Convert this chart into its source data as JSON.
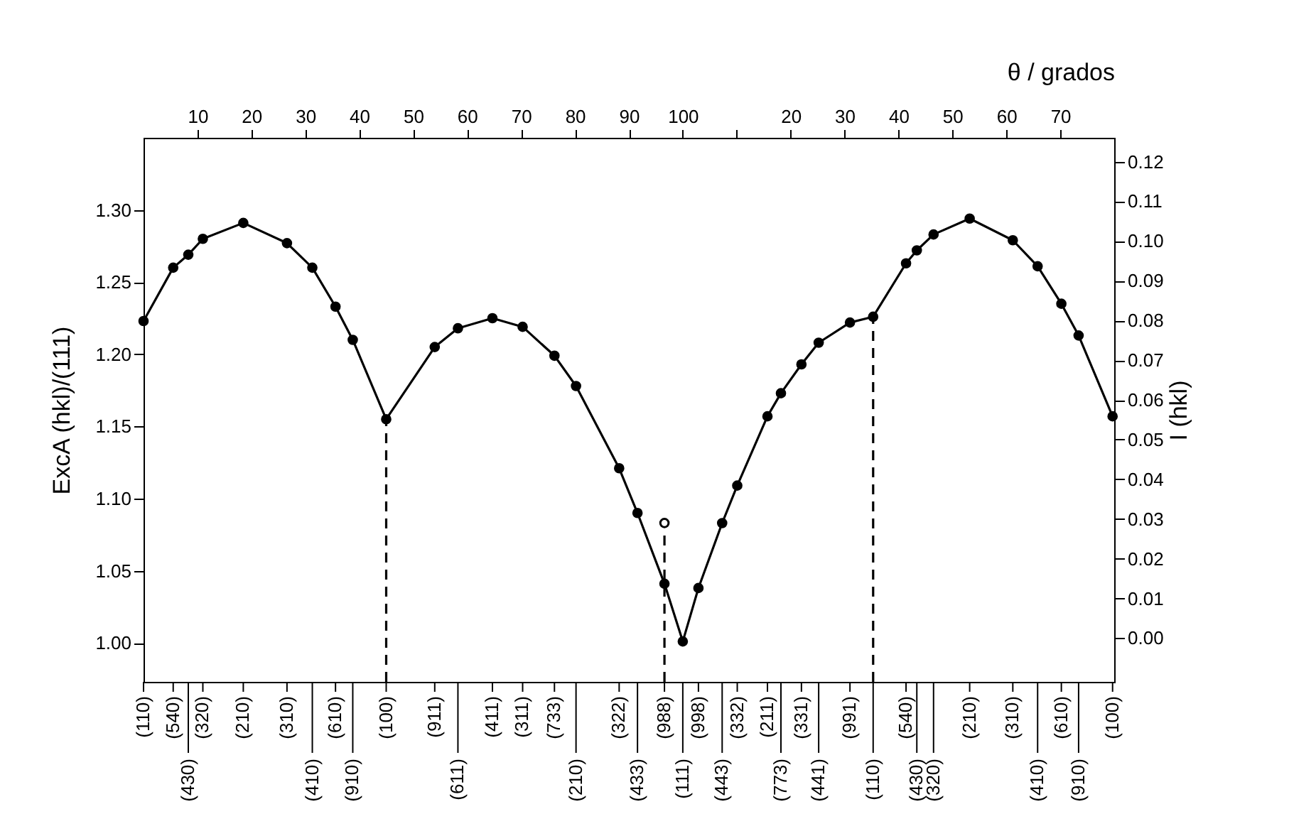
{
  "chart_data": {
    "type": "line",
    "xlabel": "θ / grados",
    "ylabel": "ExcA (hkl)/(111)",
    "y2label": "I (hkl)",
    "xlim": [
      0,
      180
    ],
    "x2lim": [
      -100,
      80
    ],
    "ylim": [
      0.973,
      1.35
    ],
    "y2lim": [
      -0.011,
      0.126
    ],
    "xticks": [
      10,
      20,
      30,
      40,
      50,
      60,
      70,
      80,
      90,
      100
    ],
    "x2ticks": [
      {
        "value": 10,
        "label": null
      },
      20,
      30,
      40,
      50,
      60,
      70
    ],
    "yticks": [
      {
        "value": 1,
        "label": "1.00"
      },
      {
        "value": 1.05,
        "label": "1.05"
      },
      {
        "value": 1.1,
        "label": "1.10"
      },
      {
        "value": 1.15,
        "label": "1.15"
      },
      {
        "value": 1.2,
        "label": "1.20"
      },
      {
        "value": 1.25,
        "label": "1.25"
      },
      {
        "value": 1.3,
        "label": "1.30"
      }
    ],
    "y2ticks": [
      {
        "value": 0,
        "label": "0.00"
      },
      0.01,
      0.02,
      0.03,
      0.04,
      0.05,
      0.06,
      0.07,
      0.08,
      0.09,
      {
        "value": 0.1,
        "label": "0.10"
      },
      0.11,
      0.12
    ],
    "annotations": [
      {
        "text": "(110)",
        "x": 0
      },
      {
        "text": "(540)",
        "x": 5.5
      },
      {
        "text": "(430)",
        "x": 8.3
      },
      {
        "text": "(320)",
        "x": 11
      },
      {
        "text": "(210)",
        "x": 18.5
      },
      {
        "text": "(310)",
        "x": 26.6
      },
      {
        "text": "(410)",
        "x": 31.3
      },
      {
        "text": "(610)",
        "x": 35.6
      },
      {
        "text": "(910)",
        "x": 38.8
      },
      {
        "text": "(100)",
        "x": 45
      },
      {
        "text": "(911)",
        "x": 54
      },
      {
        "text": "(611)",
        "x": 58.3
      },
      {
        "text": "(411)",
        "x": 64.7
      },
      {
        "text": "(311)",
        "x": 70.3
      },
      {
        "text": "(733)",
        "x": 76.2
      },
      {
        "text": "(210)",
        "x": 80.2
      },
      {
        "text": "(322)",
        "x": 88.2
      },
      {
        "text": "(433)",
        "x": 91.6
      },
      {
        "text": "(988)",
        "x": 96.6
      },
      {
        "text": "(111)",
        "x": 100
      },
      {
        "text": "(998)",
        "x": 102.9
      },
      {
        "text": "(443)",
        "x": 107.3
      },
      {
        "text": "(332)",
        "x": 110.1
      },
      {
        "text": "(211)",
        "x": 115.7
      },
      {
        "text": "(773)",
        "x": 118.2
      },
      {
        "text": "(331)",
        "x": 122
      },
      {
        "text": "(441)",
        "x": 125.2
      },
      {
        "text": "(991)",
        "x": 131
      },
      {
        "text": "(110)",
        "x": 135.3
      },
      {
        "text": "(540)",
        "x": 141.4
      },
      {
        "text": "(430)",
        "x": 143.4
      },
      {
        "text": "(320)",
        "x": 146.5
      },
      {
        "text": "(210)",
        "x": 153.2
      },
      {
        "text": "(310)",
        "x": 161.2
      },
      {
        "text": "(410)",
        "x": 165.8
      },
      {
        "text": "(610)",
        "x": 170.2
      },
      {
        "text": "(910)",
        "x": 173.4
      },
      {
        "text": "(100)",
        "x": 179.7
      }
    ],
    "series": [
      {
        "color": "#000000",
        "marker": "circle",
        "line_style": "solid",
        "x": [
          0,
          5.5,
          8.3,
          11,
          18.5,
          26.6,
          31.3,
          35.6,
          38.8,
          45,
          54,
          58.3,
          64.7,
          70.3,
          76.2,
          80.2,
          88.2,
          91.6,
          96.6,
          100,
          102.9,
          107.3,
          110.1,
          115.7,
          118.2,
          122,
          125.2,
          131,
          135.3,
          141.4,
          143.4,
          146.5,
          153.2,
          161.2,
          165.8,
          170.2,
          173.4,
          179.7
        ],
        "values": [
          1.223,
          1.26,
          1.269,
          1.28,
          1.291,
          1.277,
          1.26,
          1.233,
          1.21,
          1.155,
          1.205,
          1.218,
          1.225,
          1.219,
          1.199,
          1.178,
          1.121,
          1.09,
          1.041,
          1.001,
          1.038,
          1.083,
          1.109,
          1.157,
          1.173,
          1.193,
          1.208,
          1.222,
          1.226,
          1.263,
          1.272,
          1.283,
          1.294,
          1.279,
          1.261,
          1.235,
          1.213,
          1.157
        ]
      },
      {
        "color": "#000000",
        "marker": "none",
        "line_style": "dashed",
        "x": [
          45,
          45
        ],
        "values": [
          0.973,
          1.155
        ]
      },
      {
        "color": "#000000",
        "marker": "none",
        "line_style": "dashed",
        "x": [
          96.6,
          96.6
        ],
        "values": [
          -0.011,
          0.027
        ],
        "axis": "y2"
      },
      {
        "color": "#000000",
        "marker": "none",
        "line_style": "dashed",
        "x": [
          135.3,
          135.3
        ],
        "values": [
          0.973,
          1.226
        ]
      },
      {
        "type": "scatter",
        "color": "#000000",
        "marker": "circle",
        "x": [
          96.6
        ],
        "values": [
          0.029
        ],
        "axis": "y2"
      }
    ]
  }
}
